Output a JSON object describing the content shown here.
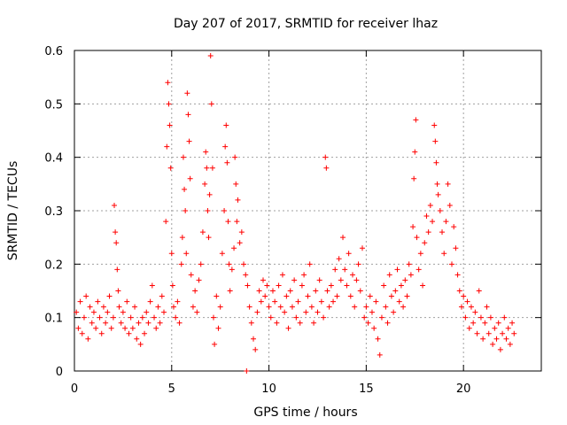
{
  "chart_data": {
    "type": "scatter",
    "title": "Day 207 of 2017, SRMTID for receiver lhaz",
    "xlabel": "GPS time / hours",
    "ylabel": "SRMTID / TECUs",
    "xlim": [
      0,
      24
    ],
    "ylim": [
      0,
      0.6
    ],
    "xticks": [
      0,
      5,
      10,
      15,
      20
    ],
    "yticks": [
      0,
      0.1,
      0.2,
      0.3,
      0.4,
      0.5,
      0.6
    ],
    "grid": true,
    "marker": "plus",
    "color": "#ff0000",
    "series": [
      {
        "name": "SRMTID",
        "points": [
          [
            0.1,
            0.11
          ],
          [
            0.2,
            0.08
          ],
          [
            0.3,
            0.13
          ],
          [
            0.4,
            0.07
          ],
          [
            0.5,
            0.1
          ],
          [
            0.6,
            0.14
          ],
          [
            0.7,
            0.06
          ],
          [
            0.8,
            0.12
          ],
          [
            0.9,
            0.09
          ],
          [
            1.0,
            0.11
          ],
          [
            1.1,
            0.08
          ],
          [
            1.2,
            0.13
          ],
          [
            1.3,
            0.1
          ],
          [
            1.4,
            0.07
          ],
          [
            1.5,
            0.12
          ],
          [
            1.6,
            0.09
          ],
          [
            1.7,
            0.11
          ],
          [
            1.8,
            0.14
          ],
          [
            1.9,
            0.08
          ],
          [
            2.0,
            0.1
          ],
          [
            2.05,
            0.31
          ],
          [
            2.1,
            0.26
          ],
          [
            2.15,
            0.24
          ],
          [
            2.2,
            0.19
          ],
          [
            2.25,
            0.15
          ],
          [
            2.3,
            0.12
          ],
          [
            2.4,
            0.09
          ],
          [
            2.5,
            0.11
          ],
          [
            2.6,
            0.08
          ],
          [
            2.7,
            0.13
          ],
          [
            2.8,
            0.07
          ],
          [
            2.9,
            0.1
          ],
          [
            3.0,
            0.08
          ],
          [
            3.1,
            0.12
          ],
          [
            3.2,
            0.06
          ],
          [
            3.3,
            0.09
          ],
          [
            3.4,
            0.05
          ],
          [
            3.5,
            0.1
          ],
          [
            3.6,
            0.07
          ],
          [
            3.7,
            0.11
          ],
          [
            3.8,
            0.09
          ],
          [
            3.9,
            0.13
          ],
          [
            4.0,
            0.16
          ],
          [
            4.1,
            0.1
          ],
          [
            4.2,
            0.08
          ],
          [
            4.3,
            0.12
          ],
          [
            4.4,
            0.09
          ],
          [
            4.5,
            0.14
          ],
          [
            4.6,
            0.11
          ],
          [
            4.7,
            0.28
          ],
          [
            4.75,
            0.42
          ],
          [
            4.8,
            0.54
          ],
          [
            4.85,
            0.5
          ],
          [
            4.9,
            0.46
          ],
          [
            4.95,
            0.38
          ],
          [
            5.0,
            0.22
          ],
          [
            5.05,
            0.16
          ],
          [
            5.1,
            0.12
          ],
          [
            5.2,
            0.1
          ],
          [
            5.3,
            0.13
          ],
          [
            5.4,
            0.09
          ],
          [
            5.5,
            0.2
          ],
          [
            5.55,
            0.25
          ],
          [
            5.6,
            0.4
          ],
          [
            5.65,
            0.34
          ],
          [
            5.7,
            0.3
          ],
          [
            5.75,
            0.22
          ],
          [
            5.8,
            0.52
          ],
          [
            5.85,
            0.48
          ],
          [
            5.9,
            0.43
          ],
          [
            5.95,
            0.36
          ],
          [
            6.0,
            0.18
          ],
          [
            6.1,
            0.12
          ],
          [
            6.2,
            0.15
          ],
          [
            6.3,
            0.11
          ],
          [
            6.4,
            0.17
          ],
          [
            6.5,
            0.2
          ],
          [
            6.6,
            0.26
          ],
          [
            6.7,
            0.35
          ],
          [
            6.75,
            0.41
          ],
          [
            6.8,
            0.38
          ],
          [
            6.85,
            0.3
          ],
          [
            6.9,
            0.25
          ],
          [
            6.95,
            0.33
          ],
          [
            7.0,
            0.59
          ],
          [
            7.05,
            0.5
          ],
          [
            7.1,
            0.38
          ],
          [
            7.15,
            0.1
          ],
          [
            7.2,
            0.05
          ],
          [
            7.3,
            0.14
          ],
          [
            7.4,
            0.08
          ],
          [
            7.5,
            0.12
          ],
          [
            7.6,
            0.22
          ],
          [
            7.7,
            0.3
          ],
          [
            7.75,
            0.42
          ],
          [
            7.8,
            0.46
          ],
          [
            7.85,
            0.39
          ],
          [
            7.9,
            0.28
          ],
          [
            7.95,
            0.2
          ],
          [
            8.0,
            0.15
          ],
          [
            8.1,
            0.19
          ],
          [
            8.2,
            0.23
          ],
          [
            8.25,
            0.4
          ],
          [
            8.3,
            0.35
          ],
          [
            8.35,
            0.28
          ],
          [
            8.4,
            0.32
          ],
          [
            8.5,
            0.24
          ],
          [
            8.6,
            0.26
          ],
          [
            8.7,
            0.2
          ],
          [
            8.8,
            0.18
          ],
          [
            8.85,
            0.0
          ],
          [
            8.9,
            0.16
          ],
          [
            9.0,
            0.12
          ],
          [
            9.1,
            0.09
          ],
          [
            9.2,
            0.06
          ],
          [
            9.3,
            0.04
          ],
          [
            9.4,
            0.11
          ],
          [
            9.5,
            0.15
          ],
          [
            9.6,
            0.13
          ],
          [
            9.7,
            0.17
          ],
          [
            9.8,
            0.14
          ],
          [
            9.9,
            0.16
          ],
          [
            10.0,
            0.12
          ],
          [
            10.1,
            0.1
          ],
          [
            10.2,
            0.15
          ],
          [
            10.3,
            0.13
          ],
          [
            10.4,
            0.09
          ],
          [
            10.5,
            0.16
          ],
          [
            10.6,
            0.12
          ],
          [
            10.7,
            0.18
          ],
          [
            10.8,
            0.11
          ],
          [
            10.9,
            0.14
          ],
          [
            11.0,
            0.08
          ],
          [
            11.1,
            0.15
          ],
          [
            11.2,
            0.12
          ],
          [
            11.3,
            0.17
          ],
          [
            11.4,
            0.1
          ],
          [
            11.5,
            0.13
          ],
          [
            11.6,
            0.09
          ],
          [
            11.7,
            0.16
          ],
          [
            11.8,
            0.18
          ],
          [
            11.9,
            0.11
          ],
          [
            12.0,
            0.14
          ],
          [
            12.1,
            0.2
          ],
          [
            12.2,
            0.12
          ],
          [
            12.3,
            0.09
          ],
          [
            12.4,
            0.15
          ],
          [
            12.5,
            0.11
          ],
          [
            12.6,
            0.17
          ],
          [
            12.7,
            0.13
          ],
          [
            12.8,
            0.1
          ],
          [
            12.9,
            0.4
          ],
          [
            12.95,
            0.38
          ],
          [
            13.0,
            0.15
          ],
          [
            13.1,
            0.12
          ],
          [
            13.2,
            0.16
          ],
          [
            13.3,
            0.13
          ],
          [
            13.4,
            0.19
          ],
          [
            13.5,
            0.14
          ],
          [
            13.6,
            0.21
          ],
          [
            13.7,
            0.17
          ],
          [
            13.8,
            0.25
          ],
          [
            13.9,
            0.19
          ],
          [
            14.0,
            0.16
          ],
          [
            14.1,
            0.22
          ],
          [
            14.2,
            0.14
          ],
          [
            14.3,
            0.18
          ],
          [
            14.4,
            0.12
          ],
          [
            14.5,
            0.17
          ],
          [
            14.6,
            0.2
          ],
          [
            14.7,
            0.15
          ],
          [
            14.8,
            0.23
          ],
          [
            14.9,
            0.1
          ],
          [
            15.0,
            0.12
          ],
          [
            15.1,
            0.09
          ],
          [
            15.2,
            0.14
          ],
          [
            15.3,
            0.11
          ],
          [
            15.4,
            0.08
          ],
          [
            15.5,
            0.13
          ],
          [
            15.6,
            0.06
          ],
          [
            15.7,
            0.03
          ],
          [
            15.8,
            0.1
          ],
          [
            15.9,
            0.16
          ],
          [
            16.0,
            0.12
          ],
          [
            16.1,
            0.09
          ],
          [
            16.2,
            0.18
          ],
          [
            16.3,
            0.14
          ],
          [
            16.4,
            0.11
          ],
          [
            16.5,
            0.15
          ],
          [
            16.6,
            0.19
          ],
          [
            16.7,
            0.13
          ],
          [
            16.8,
            0.16
          ],
          [
            16.9,
            0.12
          ],
          [
            17.0,
            0.17
          ],
          [
            17.1,
            0.14
          ],
          [
            17.2,
            0.2
          ],
          [
            17.3,
            0.18
          ],
          [
            17.4,
            0.27
          ],
          [
            17.45,
            0.36
          ],
          [
            17.5,
            0.41
          ],
          [
            17.55,
            0.47
          ],
          [
            17.6,
            0.25
          ],
          [
            17.7,
            0.19
          ],
          [
            17.8,
            0.22
          ],
          [
            17.9,
            0.16
          ],
          [
            18.0,
            0.24
          ],
          [
            18.1,
            0.29
          ],
          [
            18.2,
            0.26
          ],
          [
            18.3,
            0.31
          ],
          [
            18.4,
            0.28
          ],
          [
            18.5,
            0.46
          ],
          [
            18.55,
            0.43
          ],
          [
            18.6,
            0.39
          ],
          [
            18.65,
            0.35
          ],
          [
            18.7,
            0.33
          ],
          [
            18.8,
            0.3
          ],
          [
            18.9,
            0.26
          ],
          [
            19.0,
            0.22
          ],
          [
            19.1,
            0.28
          ],
          [
            19.2,
            0.35
          ],
          [
            19.3,
            0.31
          ],
          [
            19.4,
            0.2
          ],
          [
            19.5,
            0.27
          ],
          [
            19.6,
            0.23
          ],
          [
            19.7,
            0.18
          ],
          [
            19.8,
            0.15
          ],
          [
            19.9,
            0.12
          ],
          [
            20.0,
            0.14
          ],
          [
            20.1,
            0.1
          ],
          [
            20.2,
            0.13
          ],
          [
            20.3,
            0.08
          ],
          [
            20.4,
            0.12
          ],
          [
            20.5,
            0.09
          ],
          [
            20.6,
            0.11
          ],
          [
            20.7,
            0.07
          ],
          [
            20.8,
            0.15
          ],
          [
            20.9,
            0.1
          ],
          [
            21.0,
            0.06
          ],
          [
            21.1,
            0.09
          ],
          [
            21.2,
            0.12
          ],
          [
            21.3,
            0.07
          ],
          [
            21.4,
            0.1
          ],
          [
            21.5,
            0.05
          ],
          [
            21.6,
            0.08
          ],
          [
            21.7,
            0.06
          ],
          [
            21.8,
            0.09
          ],
          [
            21.9,
            0.04
          ],
          [
            22.0,
            0.07
          ],
          [
            22.1,
            0.1
          ],
          [
            22.2,
            0.06
          ],
          [
            22.3,
            0.08
          ],
          [
            22.4,
            0.05
          ],
          [
            22.5,
            0.09
          ],
          [
            22.6,
            0.07
          ]
        ]
      }
    ]
  }
}
